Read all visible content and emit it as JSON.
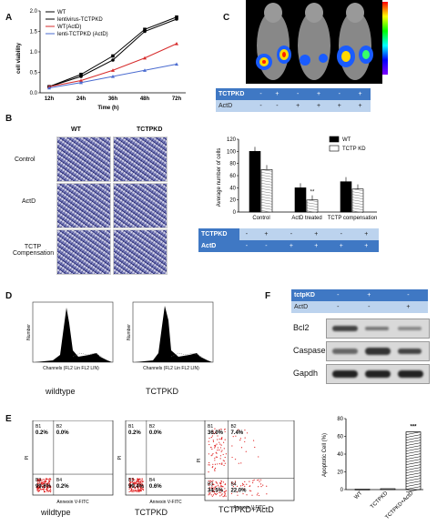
{
  "panels": {
    "A": "A",
    "B": "B",
    "C": "C",
    "D": "D",
    "E": "E",
    "F": "F"
  },
  "panelA": {
    "chart_data": {
      "type": "line",
      "x": [
        "12h",
        "24h",
        "36h",
        "48h",
        "72h"
      ],
      "series": [
        {
          "name": "WT",
          "values": [
            0.15,
            0.4,
            0.8,
            1.5,
            1.8
          ],
          "color": "#000000"
        },
        {
          "name": "lentivirus-TCTPKD",
          "values": [
            0.15,
            0.45,
            0.9,
            1.55,
            1.85
          ],
          "color": "#000000"
        },
        {
          "name": "WT(ActD)",
          "values": [
            0.15,
            0.3,
            0.55,
            0.85,
            1.2
          ],
          "color": "#d62b2b"
        },
        {
          "name": "lenti-TCTPKD (ActD)",
          "values": [
            0.12,
            0.25,
            0.4,
            0.55,
            0.7
          ],
          "color": "#4a6bd0"
        }
      ],
      "xlabel": "Time (h)",
      "ylabel": "cell viability",
      "ylim": [
        0,
        2.0
      ],
      "yticks": [
        "0.0",
        "0.5",
        "1.0",
        "1.5",
        "2.0"
      ]
    }
  },
  "panelB": {
    "col_labels": [
      "WT",
      "TCTPKD"
    ],
    "row_labels": [
      "Control",
      "ActD",
      "TCTP Compensation"
    ],
    "chart_data": {
      "type": "bar",
      "categories": [
        "Control",
        "ActD treated",
        "TCTP compensation"
      ],
      "series": [
        {
          "name": "WT",
          "values": [
            100,
            40,
            50
          ]
        },
        {
          "name": "TCTP KD",
          "values": [
            70,
            20,
            38
          ]
        }
      ],
      "ylabel": "Average number of cells",
      "ylim": [
        0,
        120
      ],
      "yticks": [
        "0",
        "20",
        "40",
        "60",
        "80",
        "100",
        "120"
      ],
      "annotation": "**"
    },
    "table": {
      "rows": [
        {
          "label": "TCTPKD",
          "cells": [
            "-",
            "+",
            "-",
            "+",
            "-",
            "+"
          ]
        },
        {
          "label": "ActD",
          "cells": [
            "-",
            "-",
            "+",
            "+",
            "+",
            "+"
          ]
        }
      ]
    }
  },
  "panelC": {
    "table": {
      "rows": [
        {
          "label": "TCTPKD",
          "cells": [
            "-",
            "+",
            "-",
            "+",
            "-",
            "+"
          ]
        },
        {
          "label": "ActD",
          "cells": [
            "-",
            "-",
            "+",
            "+",
            "+",
            "+"
          ]
        }
      ]
    }
  },
  "panelD": {
    "labels": [
      "wildtype",
      "TCTPKD"
    ],
    "axis_x": "Channels (FL2 Lin FL2 LIN)",
    "axis_y": "Number"
  },
  "panelE": {
    "plots": [
      {
        "label": "wildtype",
        "q": [
          "0.2%",
          "0.0%",
          "99.6%",
          "0.2%"
        ]
      },
      {
        "label": "TCTPKD",
        "q": [
          "0.2%",
          "0.0%",
          "99.4%",
          "0.6%"
        ]
      },
      {
        "label": "TCTPKD+ActD",
        "q": [
          "36.0%",
          "7.4%",
          "34.5%",
          "22.0%"
        ]
      }
    ],
    "quad_ids": [
      "B1",
      "B2",
      "B3",
      "B4"
    ],
    "xaxis": "Annexin V-FITC",
    "yaxis": "PI",
    "chart_data": {
      "type": "bar",
      "categories": [
        "WT",
        "TCTPKD",
        "TCTPKD+ActD"
      ],
      "values": [
        0.5,
        1,
        65
      ],
      "ylabel": "Apoptotic Cell (%)",
      "ylim": [
        0,
        80
      ],
      "yticks": [
        "0",
        "20",
        "40",
        "60",
        "80"
      ],
      "annotation": "***"
    }
  },
  "panelF": {
    "rows": [
      {
        "label": "tctpKD",
        "cells": [
          "-",
          "+",
          "-"
        ]
      },
      {
        "label": "ActD",
        "cells": [
          "-",
          "-",
          "+"
        ]
      }
    ],
    "blots": [
      "Bcl2",
      "Caspase 3",
      "Gapdh"
    ]
  }
}
